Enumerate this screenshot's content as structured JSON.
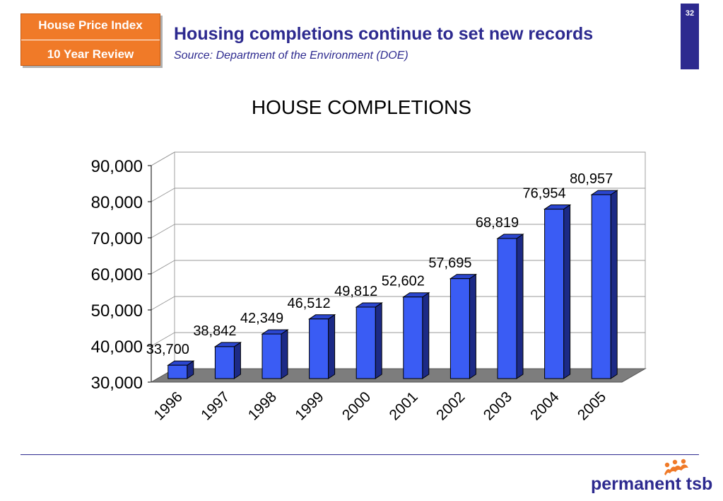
{
  "header": {
    "badge_line1": "House Price Index",
    "badge_line2": "10 Year Review",
    "title": "Housing completions continue to set new records",
    "subtitle": "Source: Department of the Environment (DOE)",
    "slide_number": "32"
  },
  "footer": {
    "logo_text": "permanent tsb",
    "logo_icon": "people-mark-icon"
  },
  "colors": {
    "brand_blue": "#2d2a8f",
    "badge_orange": "#f07a28",
    "bar_front": "#3a5cf4",
    "bar_side": "#1c2a86",
    "bar_top": "#2b46cf",
    "floor": "#7d7d7d"
  },
  "chart_data": {
    "type": "bar",
    "title": "HOUSE COMPLETIONS",
    "categories": [
      "1996",
      "1997",
      "1998",
      "1999",
      "2000",
      "2001",
      "2002",
      "2003",
      "2004",
      "2005"
    ],
    "values": [
      33700,
      38842,
      42349,
      46512,
      49812,
      52602,
      57695,
      68819,
      76954,
      80957
    ],
    "value_labels": [
      "33,700",
      "38,842",
      "42,349",
      "46,512",
      "49,812",
      "52,602",
      "57,695",
      "68,819",
      "76,954",
      "80,957"
    ],
    "y_ticks": [
      "30,000",
      "40,000",
      "50,000",
      "60,000",
      "70,000",
      "80,000",
      "90,000"
    ],
    "ylim": [
      30000,
      90000
    ],
    "grid": true,
    "legend": "none",
    "style": "3d-column"
  }
}
